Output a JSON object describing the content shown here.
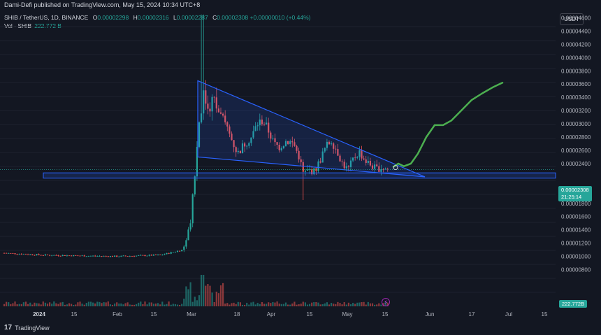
{
  "header": {
    "published": "Dami-Defi published on TradingView.com, May 15, 2024 10:34 UTC+8"
  },
  "legend": {
    "symbol": "SHIB / TetherUS, 1D, BINANCE",
    "o_label": "O",
    "o_value": "0.00002298",
    "h_label": "H",
    "h_value": "0.00002316",
    "l_label": "L",
    "l_value": "0.00002287",
    "c_label": "C",
    "c_value": "0.00002308",
    "change": "+0.00000010 (+0.44%)",
    "vol_label": "Vol · SHIB",
    "vol_value": "222.772 B"
  },
  "currency_button": "USDT",
  "price_axis": {
    "ticks": [
      "0.00004600",
      "0.00004400",
      "0.00004200",
      "0.00004000",
      "0.00003800",
      "0.00003600",
      "0.00003400",
      "0.00003200",
      "0.00003000",
      "0.00002800",
      "0.00002600",
      "0.00002400",
      "0.00002000",
      "0.00001800",
      "0.00001600",
      "0.00001400",
      "0.00001200",
      "0.00001000",
      "0.00000800"
    ],
    "current_price": "0.00002308",
    "countdown": "21:25:14",
    "volume_label": "222.772B"
  },
  "time_axis": {
    "ticks": [
      {
        "label": "2024",
        "bold": true
      },
      {
        "label": "15",
        "bold": false
      },
      {
        "label": "Feb",
        "bold": false
      },
      {
        "label": "15",
        "bold": false
      },
      {
        "label": "Mar",
        "bold": false
      },
      {
        "label": "18",
        "bold": false
      },
      {
        "label": "Apr",
        "bold": false
      },
      {
        "label": "15",
        "bold": false
      },
      {
        "label": "May",
        "bold": false
      },
      {
        "label": "15",
        "bold": false
      },
      {
        "label": "Jun",
        "bold": false
      },
      {
        "label": "17",
        "bold": false
      },
      {
        "label": "Jul",
        "bold": false
      },
      {
        "label": "15",
        "bold": false
      }
    ]
  },
  "branding": {
    "name": "TradingView"
  },
  "colors": {
    "background": "#131722",
    "up": "#26a69a",
    "down": "#ef5350",
    "pattern": "#2962ff",
    "projection": "#4caf50"
  },
  "chart_data": {
    "type": "candlestick",
    "symbol": "SHIB / TetherUS",
    "timeframe": "1D",
    "exchange": "BINANCE",
    "ylim": [
      7.5e-06,
      4.9e-05
    ],
    "annotations": [
      {
        "kind": "descending-triangle",
        "apex": "0.0000365 (early Mar)",
        "base": "0.0000225",
        "end": "late May"
      },
      {
        "kind": "support-zone",
        "range": [
          2.18e-05,
          2.26e-05
        ]
      },
      {
        "kind": "projection-curve",
        "from": "0.0000230 (mid May)",
        "to": "0.0000362 (late Jun)"
      }
    ]
  }
}
